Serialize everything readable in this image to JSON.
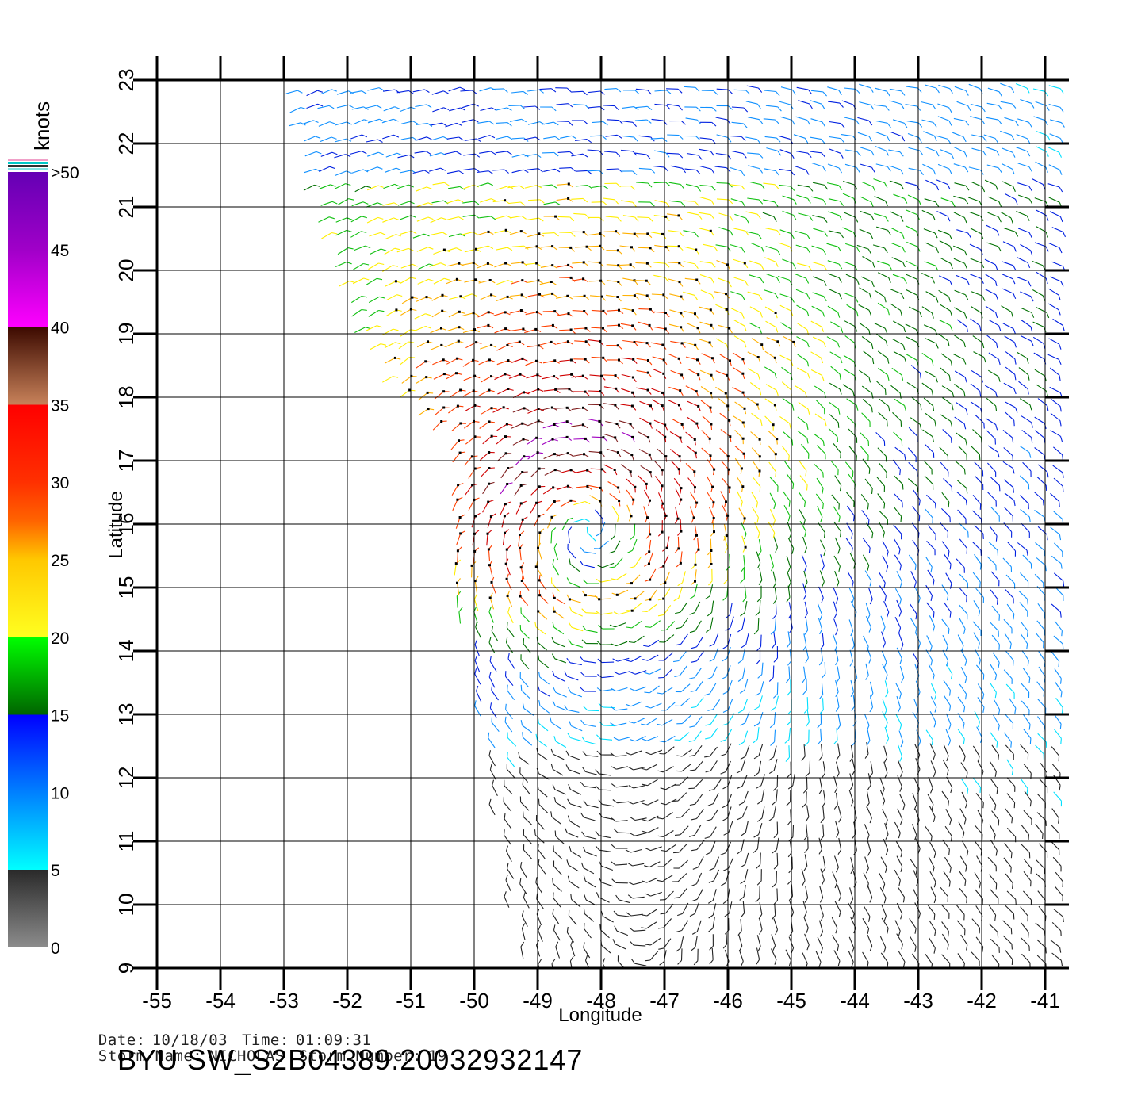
{
  "map": {
    "x_axis_label": "Longitude",
    "y_axis_label": "Latitude",
    "longitudes": [
      -55,
      -54,
      -53,
      -52,
      -51,
      -50,
      -49,
      -48,
      -47,
      -46,
      -45,
      -44,
      -43,
      -42,
      -41
    ],
    "latitudes": [
      9,
      10,
      11,
      12,
      13,
      14,
      15,
      16,
      17,
      18,
      19,
      20,
      21,
      22,
      23
    ],
    "lon_range": [
      -55,
      -40.7
    ],
    "lat_range": [
      9,
      23
    ],
    "storm_center": {
      "lon": -48.2,
      "lat": 16.1
    },
    "swath_west_edge": [
      [
        -53,
        23
      ],
      [
        -51.8,
        19
      ],
      [
        -50.2,
        17
      ],
      [
        -50.5,
        16
      ],
      [
        -50,
        13
      ],
      [
        -49.5,
        10
      ],
      [
        -49.2,
        9
      ]
    ],
    "grid_color": "#000000"
  },
  "colorbar": {
    "title": "knots",
    "tick_labels": [
      "0",
      "5",
      "10",
      "15",
      "20",
      "25",
      "30",
      "35",
      "40",
      "45",
      ">50"
    ],
    "stops": [
      {
        "knots": 0,
        "color": "#8c8c8c"
      },
      {
        "knots": 5,
        "color": "#2a2a2a"
      },
      {
        "knots": 5,
        "color": "#00ffff"
      },
      {
        "knots": 10,
        "color": "#0080ff"
      },
      {
        "knots": 15,
        "color": "#0000ff"
      },
      {
        "knots": 15,
        "color": "#006400"
      },
      {
        "knots": 20,
        "color": "#00ff00"
      },
      {
        "knots": 20,
        "color": "#ffff20"
      },
      {
        "knots": 25,
        "color": "#ffc800"
      },
      {
        "knots": 27.5,
        "color": "#ff6400"
      },
      {
        "knots": 30,
        "color": "#ff3000"
      },
      {
        "knots": 35,
        "color": "#ff0000"
      },
      {
        "knots": 35,
        "color": "#c8825a"
      },
      {
        "knots": 40,
        "color": "#3c0a00"
      },
      {
        "knots": 40,
        "color": "#ff00ff"
      },
      {
        "knots": 45,
        "color": "#a000c8"
      },
      {
        "knots": 50,
        "color": "#6400b4"
      }
    ]
  },
  "info": {
    "date_label": "Date:",
    "date_value": "10/18/03",
    "time_label": "Time:",
    "time_value": "01:09:31",
    "storm_name_label": "Storm Name:",
    "storm_name_value": "NICHOLAS",
    "storm_number_label": "Storm Number:",
    "storm_number_value": "19"
  },
  "product_title": "BYU  SW_S2B04389.20032932147"
}
